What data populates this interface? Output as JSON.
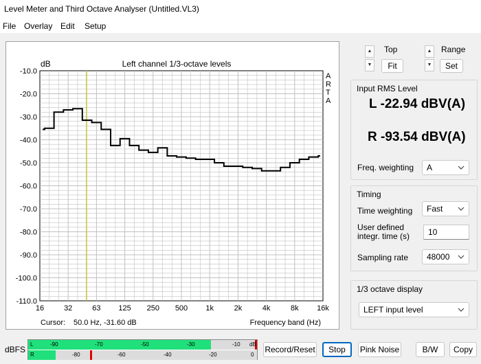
{
  "window": {
    "title": "Level Meter and Third Octave Analyser (Untitled.VL3)"
  },
  "menu": [
    "File",
    "Overlay",
    "Edit",
    "Setup"
  ],
  "plot": {
    "title": "Left channel 1/3-octave levels",
    "y_unit": "dB",
    "side_label": [
      "A",
      "R",
      "T",
      "A"
    ],
    "cursor_label": "Cursor:",
    "cursor_value": "50.0 Hz, -31.60 dB",
    "x_axis_label": "Frequency band (Hz)",
    "x_ticks": [
      "16",
      "32",
      "63",
      "125",
      "250",
      "500",
      "1k",
      "2k",
      "4k",
      "8k",
      "16k"
    ],
    "y_ticks": [
      "-10.0",
      "-20.0",
      "-30.0",
      "-40.0",
      "-50.0",
      "-60.0",
      "-70.0",
      "-80.0",
      "-90.0",
      "-100.0",
      "-110.0"
    ]
  },
  "chart_data": {
    "type": "line",
    "title": "Left channel 1/3-octave levels",
    "xlabel": "Frequency band (Hz)",
    "ylabel": "dB",
    "ylim": [
      -110,
      -10
    ],
    "grid": true,
    "cursor": {
      "freq_hz": 50,
      "level_db": -31.6
    },
    "series": [
      {
        "bands": [
          "16",
          "20",
          "25",
          "31.5",
          "40",
          "50",
          "63",
          "80",
          "100",
          "125",
          "160",
          "200",
          "250",
          "315",
          "400",
          "500",
          "630",
          "800",
          "1k",
          "1.25k",
          "1.6k",
          "2k",
          "2.5k",
          "3.15k",
          "4k",
          "5k",
          "6.3k",
          "8k",
          "10k",
          "12.5k",
          "16k"
        ],
        "values": [
          -35.5,
          -35,
          -28,
          -27,
          -26.5,
          -31.5,
          -32.5,
          -35.5,
          -42.5,
          -39.5,
          -42.5,
          -44.5,
          -45.5,
          -43.5,
          -47,
          -47.5,
          -48,
          -48.5,
          -48.5,
          -50,
          -51.5,
          -51.5,
          -52,
          -52.5,
          -53.5,
          -53.5,
          -52,
          -50,
          -48.5,
          -47.5,
          -47
        ]
      }
    ]
  },
  "controls": {
    "top_label": "Top",
    "fit_label": "Fit",
    "range_label": "Range",
    "set_label": "Set",
    "up_glyph": "▲",
    "down_glyph": "▼"
  },
  "rms": {
    "title": "Input RMS Level",
    "left": "L -22.94 dBV(A)",
    "right": "R -93.54 dBV(A)",
    "freq_weighting_label": "Freq. weighting",
    "freq_weighting_value": "A"
  },
  "timing": {
    "title": "Timing",
    "time_weighting_label": "Time weighting",
    "time_weighting_value": "Fast",
    "integr_label_1": "User defined",
    "integr_label_2": "integr. time (s)",
    "integr_value": "10",
    "sampling_label": "Sampling rate",
    "sampling_value": "48000"
  },
  "octave_display": {
    "title": "1/3 octave display",
    "value": "LEFT input level"
  },
  "meter": {
    "label": "dBFS",
    "left_channel": "L",
    "right_channel": "R",
    "db_unit": "dB",
    "left_level_fraction": 0.8,
    "right_level_fraction": 0.12,
    "left_peak_fraction": 0.995,
    "right_peak_fraction": 0.27,
    "top_scale": [
      "-90",
      "-70",
      "-50",
      "-30",
      "-10"
    ],
    "bottom_scale": [
      "-80",
      "-60",
      "-40",
      "-20",
      "0"
    ],
    "fill_color": "#1fe07a",
    "peak_color": "#e00000"
  },
  "buttons": {
    "record_reset": "Record/Reset",
    "stop": "Stop",
    "pink_noise": "Pink Noise",
    "bw": "B/W",
    "copy": "Copy"
  },
  "colors": {
    "trace": "#000000",
    "cursor": "#d4c000",
    "grid": "#c0c0c0",
    "accent": "#0067c0"
  }
}
